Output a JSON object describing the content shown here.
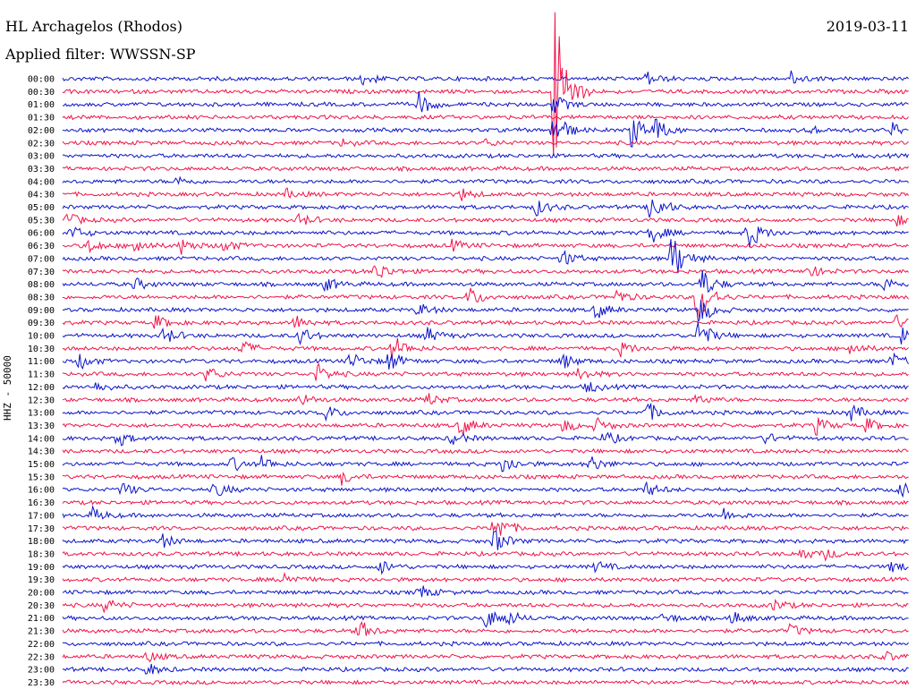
{
  "header": {
    "station": "HL Archagelos (Rhodos)",
    "date": "2019-03-11",
    "filter": "Applied filter: WWSSN-SP"
  },
  "ylabel": "HHZ - 50000",
  "colors": {
    "odd": "#0b12c8",
    "even": "#f0144a",
    "background": "#ffffff"
  },
  "chart_data": {
    "type": "line",
    "row_labels": [
      "00:00",
      "00:30",
      "01:00",
      "01:30",
      "02:00",
      "02:30",
      "03:00",
      "03:30",
      "04:00",
      "04:30",
      "05:00",
      "05:30",
      "06:00",
      "06:30",
      "07:00",
      "07:30",
      "08:00",
      "08:30",
      "09:00",
      "09:30",
      "10:00",
      "10:30",
      "11:00",
      "11:30",
      "12:00",
      "12:30",
      "13:00",
      "13:30",
      "14:00",
      "14:30",
      "15:00",
      "15:30",
      "16:00",
      "16:30",
      "17:00",
      "17:30",
      "18:00",
      "18:30",
      "19:00",
      "19:30",
      "20:00",
      "20:30",
      "21:00",
      "21:30",
      "22:00",
      "22:30",
      "23:00",
      "23:30"
    ],
    "events": [
      {
        "row": 0,
        "t": 0.355,
        "amp": 7
      },
      {
        "row": 0,
        "t": 0.688,
        "amp": 9
      },
      {
        "row": 0,
        "t": 0.86,
        "amp": 8
      },
      {
        "row": 1,
        "t": 0.58,
        "amp": 110
      },
      {
        "row": 2,
        "t": 0.42,
        "amp": 14
      },
      {
        "row": 2,
        "t": 0.58,
        "amp": 12
      },
      {
        "row": 4,
        "t": 0.58,
        "amp": 24
      },
      {
        "row": 4,
        "t": 0.672,
        "amp": 20
      },
      {
        "row": 4,
        "t": 0.7,
        "amp": 12
      },
      {
        "row": 4,
        "t": 0.88,
        "amp": 6
      },
      {
        "row": 4,
        "t": 0.98,
        "amp": 8
      },
      {
        "row": 5,
        "t": 0.33,
        "amp": 4
      },
      {
        "row": 5,
        "t": 0.5,
        "amp": 4
      },
      {
        "row": 8,
        "t": 0.135,
        "amp": 5
      },
      {
        "row": 9,
        "t": 0.265,
        "amp": 5
      },
      {
        "row": 9,
        "t": 0.47,
        "amp": 7
      },
      {
        "row": 10,
        "t": 0.56,
        "amp": 9
      },
      {
        "row": 10,
        "t": 0.695,
        "amp": 20
      },
      {
        "row": 11,
        "t": 0.005,
        "amp": 8
      },
      {
        "row": 11,
        "t": 0.28,
        "amp": 7
      },
      {
        "row": 11,
        "t": 0.985,
        "amp": 6
      },
      {
        "row": 12,
        "t": 0.01,
        "amp": 8
      },
      {
        "row": 12,
        "t": 0.81,
        "amp": 20
      },
      {
        "row": 12,
        "t": 0.695,
        "amp": 12
      },
      {
        "row": 13,
        "t": 0.03,
        "amp": 8
      },
      {
        "row": 13,
        "t": 0.085,
        "amp": 10
      },
      {
        "row": 13,
        "t": 0.14,
        "amp": 9
      },
      {
        "row": 13,
        "t": 0.19,
        "amp": 8
      },
      {
        "row": 13,
        "t": 0.46,
        "amp": 6
      },
      {
        "row": 14,
        "t": 0.59,
        "amp": 10
      },
      {
        "row": 14,
        "t": 0.72,
        "amp": 30
      },
      {
        "row": 15,
        "t": 0.37,
        "amp": 12
      },
      {
        "row": 15,
        "t": 0.88,
        "amp": 8
      },
      {
        "row": 16,
        "t": 0.31,
        "amp": 8
      },
      {
        "row": 16,
        "t": 0.085,
        "amp": 7
      },
      {
        "row": 16,
        "t": 0.755,
        "amp": 18
      },
      {
        "row": 16,
        "t": 0.97,
        "amp": 8
      },
      {
        "row": 17,
        "t": 0.48,
        "amp": 12
      },
      {
        "row": 17,
        "t": 0.655,
        "amp": 8
      },
      {
        "row": 17,
        "t": 0.75,
        "amp": 34
      },
      {
        "row": 18,
        "t": 0.75,
        "amp": 20
      },
      {
        "row": 18,
        "t": 0.63,
        "amp": 10
      },
      {
        "row": 18,
        "t": 0.42,
        "amp": 8
      },
      {
        "row": 19,
        "t": 0.275,
        "amp": 8
      },
      {
        "row": 19,
        "t": 0.11,
        "amp": 8
      },
      {
        "row": 19,
        "t": 0.985,
        "amp": 7
      },
      {
        "row": 20,
        "t": 0.12,
        "amp": 10
      },
      {
        "row": 20,
        "t": 0.28,
        "amp": 10
      },
      {
        "row": 20,
        "t": 0.43,
        "amp": 9
      },
      {
        "row": 20,
        "t": 0.75,
        "amp": 20
      },
      {
        "row": 20,
        "t": 0.99,
        "amp": 10
      },
      {
        "row": 21,
        "t": 0.21,
        "amp": 10
      },
      {
        "row": 21,
        "t": 0.39,
        "amp": 16
      },
      {
        "row": 21,
        "t": 0.66,
        "amp": 8
      },
      {
        "row": 21,
        "t": 0.93,
        "amp": 8
      },
      {
        "row": 22,
        "t": 0.02,
        "amp": 9
      },
      {
        "row": 22,
        "t": 0.34,
        "amp": 10
      },
      {
        "row": 22,
        "t": 0.385,
        "amp": 12
      },
      {
        "row": 22,
        "t": 0.59,
        "amp": 9
      },
      {
        "row": 22,
        "t": 0.98,
        "amp": 9
      },
      {
        "row": 23,
        "t": 0.17,
        "amp": 9
      },
      {
        "row": 23,
        "t": 0.3,
        "amp": 12
      },
      {
        "row": 23,
        "t": 0.61,
        "amp": 7
      },
      {
        "row": 24,
        "t": 0.04,
        "amp": 6
      },
      {
        "row": 24,
        "t": 0.62,
        "amp": 7
      },
      {
        "row": 25,
        "t": 0.28,
        "amp": 8
      },
      {
        "row": 25,
        "t": 0.43,
        "amp": 8
      },
      {
        "row": 25,
        "t": 0.75,
        "amp": 6
      },
      {
        "row": 26,
        "t": 0.31,
        "amp": 9
      },
      {
        "row": 26,
        "t": 0.69,
        "amp": 12
      },
      {
        "row": 26,
        "t": 0.93,
        "amp": 10
      },
      {
        "row": 27,
        "t": 0.47,
        "amp": 12
      },
      {
        "row": 27,
        "t": 0.59,
        "amp": 8
      },
      {
        "row": 27,
        "t": 0.63,
        "amp": 8
      },
      {
        "row": 27,
        "t": 0.89,
        "amp": 10
      },
      {
        "row": 27,
        "t": 0.95,
        "amp": 8
      },
      {
        "row": 28,
        "t": 0.065,
        "amp": 9
      },
      {
        "row": 28,
        "t": 0.46,
        "amp": 8
      },
      {
        "row": 28,
        "t": 0.64,
        "amp": 8
      },
      {
        "row": 28,
        "t": 0.83,
        "amp": 6
      },
      {
        "row": 30,
        "t": 0.2,
        "amp": 8
      },
      {
        "row": 30,
        "t": 0.235,
        "amp": 8
      },
      {
        "row": 30,
        "t": 0.52,
        "amp": 12
      },
      {
        "row": 30,
        "t": 0.62,
        "amp": 12
      },
      {
        "row": 31,
        "t": 0.33,
        "amp": 8
      },
      {
        "row": 32,
        "t": 0.07,
        "amp": 8
      },
      {
        "row": 32,
        "t": 0.18,
        "amp": 9
      },
      {
        "row": 32,
        "t": 0.69,
        "amp": 8
      },
      {
        "row": 32,
        "t": 0.99,
        "amp": 8
      },
      {
        "row": 34,
        "t": 0.035,
        "amp": 8
      },
      {
        "row": 34,
        "t": 0.78,
        "amp": 8
      },
      {
        "row": 35,
        "t": 0.51,
        "amp": 20
      },
      {
        "row": 36,
        "t": 0.115,
        "amp": 9
      },
      {
        "row": 36,
        "t": 0.51,
        "amp": 14
      },
      {
        "row": 37,
        "t": 0.87,
        "amp": 8
      },
      {
        "row": 37,
        "t": 0.9,
        "amp": 6
      },
      {
        "row": 38,
        "t": 0.375,
        "amp": 8
      },
      {
        "row": 38,
        "t": 0.63,
        "amp": 6
      },
      {
        "row": 38,
        "t": 0.98,
        "amp": 7
      },
      {
        "row": 39,
        "t": 0.26,
        "amp": 9
      },
      {
        "row": 40,
        "t": 0.42,
        "amp": 9
      },
      {
        "row": 41,
        "t": 0.05,
        "amp": 8
      },
      {
        "row": 41,
        "t": 0.84,
        "amp": 7
      },
      {
        "row": 42,
        "t": 0.5,
        "amp": 12
      },
      {
        "row": 42,
        "t": 0.525,
        "amp": 8
      },
      {
        "row": 42,
        "t": 0.71,
        "amp": 7
      },
      {
        "row": 42,
        "t": 0.79,
        "amp": 8
      },
      {
        "row": 43,
        "t": 0.35,
        "amp": 12
      },
      {
        "row": 43,
        "t": 0.86,
        "amp": 7
      },
      {
        "row": 45,
        "t": 0.1,
        "amp": 6
      },
      {
        "row": 45,
        "t": 0.97,
        "amp": 6
      },
      {
        "row": 46,
        "t": 0.1,
        "amp": 7
      }
    ]
  }
}
